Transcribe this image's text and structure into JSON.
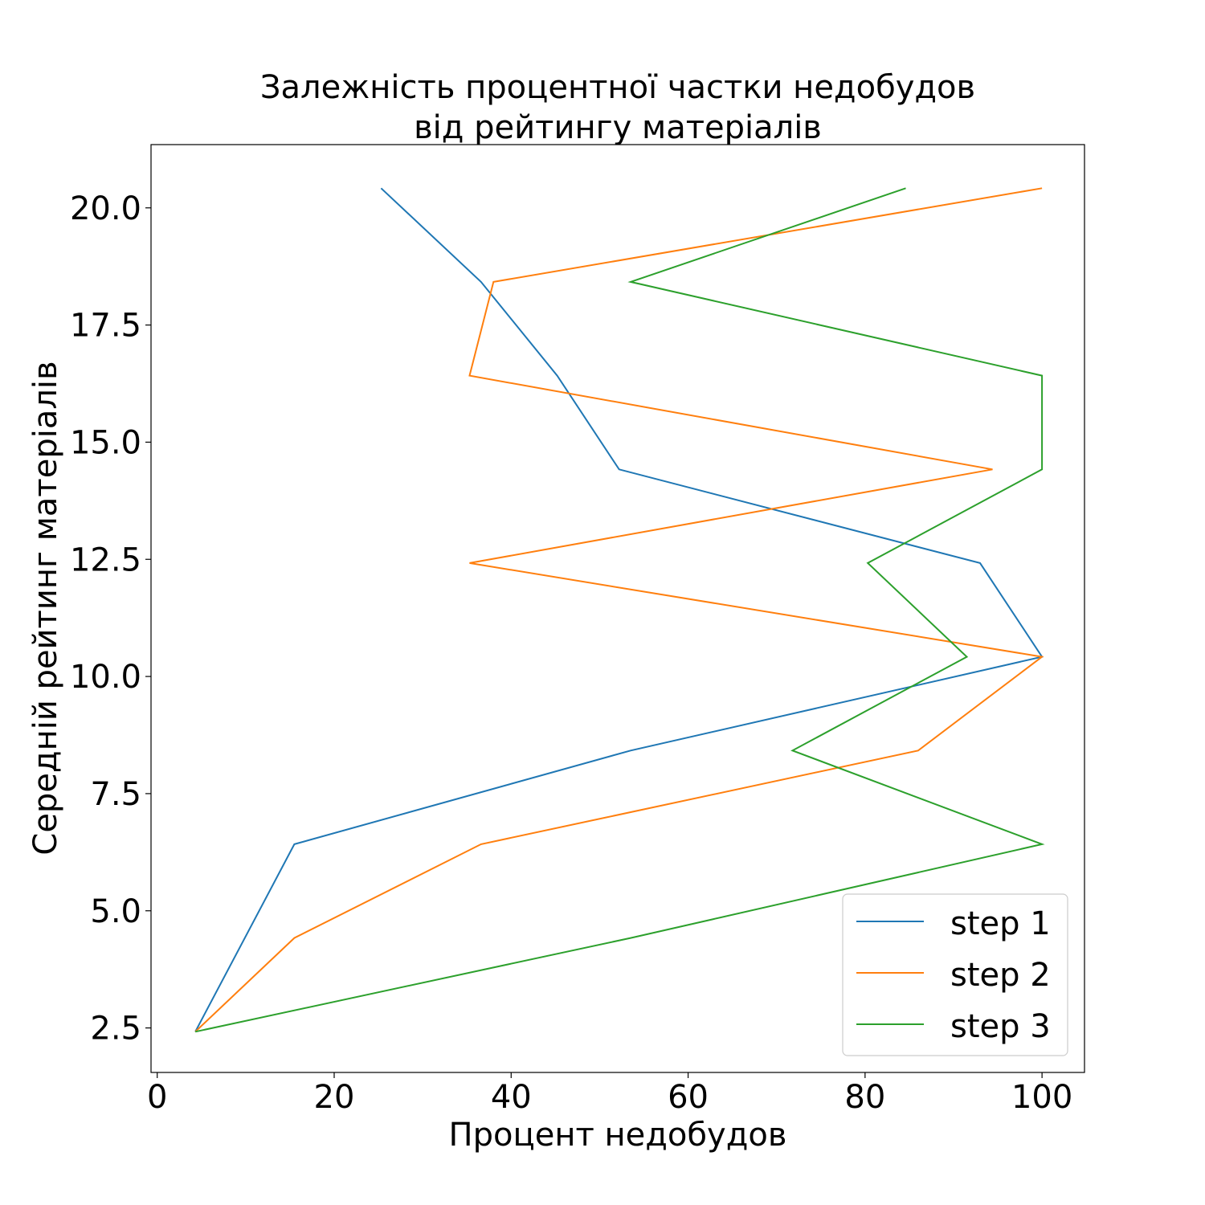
{
  "chart_data": {
    "type": "line",
    "title": [
      "Залежність процентної частки недобудов",
      "від рейтингу матеріалів"
    ],
    "xlabel": "Процент недобудов",
    "ylabel": "Середній рейтинг матеріалів",
    "xlim": [
      -0.7,
      104.8
    ],
    "ylim": [
      1.55,
      21.35
    ],
    "xticks": [
      0,
      20,
      40,
      60,
      80,
      100
    ],
    "xtick_labels": [
      "0",
      "20",
      "40",
      "60",
      "80",
      "100"
    ],
    "yticks": [
      2.5,
      5.0,
      7.5,
      10.0,
      12.5,
      15.0,
      17.5,
      20.0
    ],
    "ytick_labels": [
      "2.5",
      "5.0",
      "7.5",
      "10.0",
      "12.5",
      "15.0",
      "17.5",
      "20.0"
    ],
    "grid": false,
    "legend_position": "lower-right",
    "series": [
      {
        "name": "step 1",
        "color": "#1f77b4",
        "points": [
          [
            4.3,
            2.42
          ],
          [
            15.5,
            6.42
          ],
          [
            53.5,
            8.42
          ],
          [
            100.0,
            10.42
          ],
          [
            93.0,
            12.42
          ],
          [
            52.2,
            14.42
          ],
          [
            45.2,
            16.42
          ],
          [
            36.6,
            18.42
          ],
          [
            25.3,
            20.42
          ]
        ]
      },
      {
        "name": "step 2",
        "color": "#ff7f0e",
        "points": [
          [
            4.3,
            2.42
          ],
          [
            15.5,
            4.42
          ],
          [
            36.6,
            6.42
          ],
          [
            86.0,
            8.42
          ],
          [
            100.0,
            10.42
          ],
          [
            35.3,
            12.42
          ],
          [
            94.4,
            14.42
          ],
          [
            35.3,
            16.42
          ],
          [
            38.0,
            18.42
          ],
          [
            100.0,
            20.42
          ]
        ]
      },
      {
        "name": "step 3",
        "color": "#2ca02c",
        "points": [
          [
            4.3,
            2.42
          ],
          [
            53.5,
            4.42
          ],
          [
            100.0,
            6.42
          ],
          [
            71.8,
            8.42
          ],
          [
            91.5,
            10.42
          ],
          [
            80.3,
            12.42
          ],
          [
            100.0,
            14.42
          ],
          [
            100.0,
            16.42
          ],
          [
            53.5,
            18.42
          ],
          [
            84.6,
            20.42
          ]
        ]
      }
    ]
  }
}
